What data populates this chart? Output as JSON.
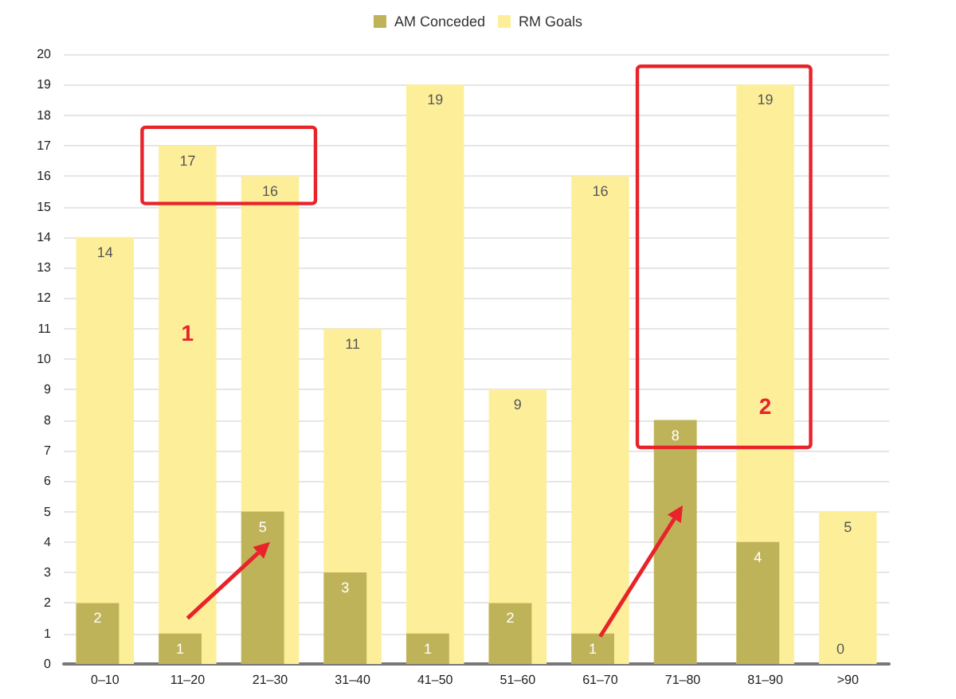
{
  "chart_data": {
    "type": "bar",
    "categories": [
      "0–10",
      "11–20",
      "21–30",
      "31–40",
      "41–50",
      "51–60",
      "61–70",
      "71–80",
      "81–90",
      ">90"
    ],
    "series": [
      {
        "name": "AM Conceded",
        "color": "#bfb35a",
        "values": [
          2,
          1,
          5,
          3,
          1,
          2,
          1,
          8,
          4,
          0
        ],
        "value_labels": [
          "2",
          "1",
          "5",
          "3",
          "1",
          "2",
          "1",
          "8",
          "4",
          "0"
        ]
      },
      {
        "name": "RM Goals",
        "color": "#fdef9a",
        "values": [
          14,
          17,
          16,
          11,
          19,
          9,
          16,
          null,
          19,
          5
        ],
        "value_labels": [
          "14",
          "17",
          "16",
          "11",
          "19",
          "9",
          "16",
          null,
          "19",
          "5"
        ]
      }
    ],
    "ylim": [
      0,
      20
    ],
    "yticks": [
      0,
      1,
      2,
      3,
      4,
      5,
      6,
      7,
      8,
      9,
      10,
      11,
      12,
      13,
      14,
      15,
      16,
      17,
      18,
      19,
      20
    ],
    "grid": "y",
    "legend": "top",
    "annotations": [
      "1",
      "2"
    ]
  }
}
